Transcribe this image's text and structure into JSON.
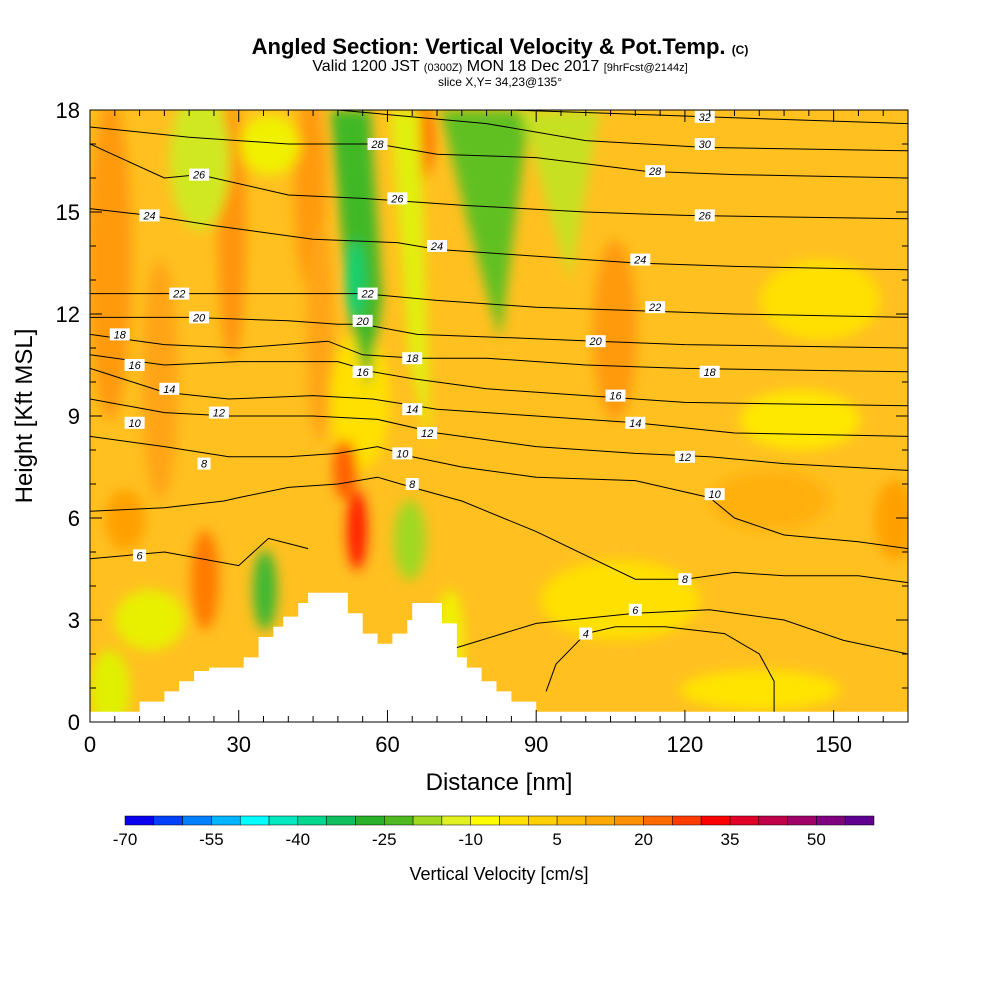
{
  "title": {
    "main": "Angled Section: Vertical Velocity & Pot.Temp.",
    "main_unit": "(C)",
    "valid_prefix": "Valid 1200 JST",
    "valid_utc": "(0300Z)",
    "valid_date": "MON 18 Dec 2017",
    "forecast": "[9hrFcst@2144z]",
    "slice": "slice X,Y= 34,23@135°"
  },
  "chart_data": {
    "type": "heatmap",
    "xlabel": "Distance [nm]",
    "ylabel": "Height [Kft MSL]",
    "xlim": [
      0,
      165
    ],
    "ylim": [
      0,
      18
    ],
    "x_ticks": [
      "0",
      "30",
      "60",
      "90",
      "120",
      "150"
    ],
    "y_ticks": [
      "0",
      "3",
      "6",
      "9",
      "12",
      "15",
      "18"
    ],
    "colorbar": {
      "title": "Vertical Velocity [cm/s]",
      "tick_labels": [
        "-70",
        "-55",
        "-40",
        "-25",
        "-10",
        "5",
        "20",
        "35",
        "50"
      ],
      "colors": [
        "#0a00f0",
        "#0040ff",
        "#0080ff",
        "#00b4ff",
        "#00ffff",
        "#00e8c0",
        "#00d890",
        "#10c060",
        "#28b028",
        "#50b820",
        "#a0d820",
        "#e0f020",
        "#ffff00",
        "#ffe000",
        "#ffd000",
        "#ffbf00",
        "#ffa800",
        "#ff9000",
        "#ff6a00",
        "#ff3c00",
        "#ff0000",
        "#e00028",
        "#c00048",
        "#a00068",
        "#800080",
        "#600090"
      ]
    },
    "terrain_profile_kft": [
      [
        0,
        0.3
      ],
      [
        10,
        0.3
      ],
      [
        10,
        0.6
      ],
      [
        15,
        0.6
      ],
      [
        15,
        0.9
      ],
      [
        18,
        0.9
      ],
      [
        18,
        1.2
      ],
      [
        21,
        1.2
      ],
      [
        21,
        1.5
      ],
      [
        24,
        1.5
      ],
      [
        24,
        1.6
      ],
      [
        31,
        1.6
      ],
      [
        31,
        1.9
      ],
      [
        34,
        1.9
      ],
      [
        34,
        2.5
      ],
      [
        37,
        2.5
      ],
      [
        37,
        2.8
      ],
      [
        39,
        2.8
      ],
      [
        39,
        3.1
      ],
      [
        42,
        3.1
      ],
      [
        42,
        3.5
      ],
      [
        44,
        3.5
      ],
      [
        44,
        3.8
      ],
      [
        52,
        3.8
      ],
      [
        52,
        3.2
      ],
      [
        55,
        3.2
      ],
      [
        55,
        2.6
      ],
      [
        58,
        2.6
      ],
      [
        58,
        2.3
      ],
      [
        61,
        2.3
      ],
      [
        61,
        2.6
      ],
      [
        64,
        2.6
      ],
      [
        64,
        3.0
      ],
      [
        65,
        3.0
      ],
      [
        65,
        3.5
      ],
      [
        71,
        3.5
      ],
      [
        71,
        2.9
      ],
      [
        74,
        2.9
      ],
      [
        74,
        1.9
      ],
      [
        76,
        1.9
      ],
      [
        76,
        1.6
      ],
      [
        79,
        1.6
      ],
      [
        79,
        1.2
      ],
      [
        82,
        1.2
      ],
      [
        82,
        0.9
      ],
      [
        85,
        0.9
      ],
      [
        85,
        0.6
      ],
      [
        90,
        0.6
      ],
      [
        90,
        0.3
      ],
      [
        165,
        0.3
      ]
    ],
    "theta_isentropes": [
      {
        "label": "4",
        "points": [
          [
            92,
            0.9
          ],
          [
            94,
            1.7
          ],
          [
            100,
            2.6
          ],
          [
            106,
            2.8
          ],
          [
            116,
            2.8
          ],
          [
            128,
            2.6
          ],
          [
            135,
            2.0
          ],
          [
            138,
            1.2
          ],
          [
            138,
            0.3
          ]
        ],
        "labels_at": [
          [
            100,
            2.6
          ]
        ]
      },
      {
        "label": "6",
        "points": [
          [
            0,
            4.8
          ],
          [
            15,
            5.0
          ],
          [
            30,
            4.6
          ],
          [
            36,
            5.4
          ],
          [
            44,
            5.1
          ]
        ],
        "labels_at": [
          [
            10,
            4.9
          ]
        ]
      },
      {
        "label": "6",
        "points": [
          [
            72,
            2.1
          ],
          [
            90,
            2.9
          ],
          [
            110,
            3.2
          ],
          [
            125,
            3.3
          ],
          [
            140,
            3.0
          ],
          [
            152,
            2.4
          ],
          [
            165,
            2.0
          ]
        ],
        "labels_at": [
          [
            110,
            3.3
          ]
        ]
      },
      {
        "label": "8",
        "points": [
          [
            0,
            6.2
          ],
          [
            15,
            6.3
          ],
          [
            27,
            6.5
          ],
          [
            30,
            6.6
          ],
          [
            40,
            6.9
          ],
          [
            50,
            7.0
          ],
          [
            58,
            7.2
          ],
          [
            65,
            6.9
          ],
          [
            75,
            6.5
          ],
          [
            90,
            5.6
          ],
          [
            110,
            4.2
          ],
          [
            120,
            4.2
          ],
          [
            130,
            4.4
          ],
          [
            140,
            4.3
          ],
          [
            155,
            4.3
          ],
          [
            165,
            4.1
          ]
        ],
        "labels_at": [
          [
            23,
            7.6
          ],
          [
            65,
            7.0
          ],
          [
            120,
            4.2
          ]
        ]
      },
      {
        "label": "10",
        "points": [
          [
            0,
            8.4
          ],
          [
            15,
            8.1
          ],
          [
            28,
            7.8
          ],
          [
            40,
            7.8
          ],
          [
            50,
            7.9
          ],
          [
            58,
            8.1
          ],
          [
            65,
            7.8
          ],
          [
            75,
            7.5
          ],
          [
            90,
            7.2
          ],
          [
            110,
            7.1
          ],
          [
            125,
            6.6
          ],
          [
            130,
            6.0
          ],
          [
            140,
            5.5
          ],
          [
            155,
            5.3
          ],
          [
            165,
            5.1
          ]
        ],
        "labels_at": [
          [
            9,
            8.8
          ],
          [
            63,
            7.9
          ],
          [
            126,
            6.7
          ]
        ]
      },
      {
        "label": "12",
        "points": [
          [
            0,
            9.5
          ],
          [
            15,
            9.1
          ],
          [
            28,
            9.0
          ],
          [
            45,
            9.0
          ],
          [
            58,
            8.9
          ],
          [
            70,
            8.5
          ],
          [
            90,
            8.1
          ],
          [
            110,
            7.9
          ],
          [
            125,
            7.8
          ],
          [
            140,
            7.6
          ],
          [
            165,
            7.4
          ]
        ],
        "labels_at": [
          [
            26,
            9.1
          ],
          [
            68,
            8.5
          ],
          [
            120,
            7.8
          ]
        ]
      },
      {
        "label": "14",
        "points": [
          [
            0,
            10.4
          ],
          [
            15,
            9.7
          ],
          [
            28,
            9.5
          ],
          [
            45,
            9.6
          ],
          [
            57,
            9.5
          ],
          [
            70,
            9.2
          ],
          [
            90,
            9.0
          ],
          [
            110,
            8.8
          ],
          [
            130,
            8.5
          ],
          [
            165,
            8.4
          ]
        ],
        "labels_at": [
          [
            16,
            9.8
          ],
          [
            65,
            9.2
          ],
          [
            110,
            8.8
          ]
        ]
      },
      {
        "label": "16",
        "points": [
          [
            0,
            10.8
          ],
          [
            15,
            10.5
          ],
          [
            30,
            10.6
          ],
          [
            50,
            10.6
          ],
          [
            57,
            10.3
          ],
          [
            65,
            10.1
          ],
          [
            80,
            9.8
          ],
          [
            100,
            9.6
          ],
          [
            120,
            9.4
          ],
          [
            165,
            9.3
          ]
        ],
        "labels_at": [
          [
            9,
            10.5
          ],
          [
            55,
            10.3
          ],
          [
            106,
            9.6
          ]
        ]
      },
      {
        "label": "18",
        "points": [
          [
            0,
            11.4
          ],
          [
            15,
            11.1
          ],
          [
            30,
            11.0
          ],
          [
            48,
            11.2
          ],
          [
            55,
            10.8
          ],
          [
            66,
            10.7
          ],
          [
            80,
            10.7
          ],
          [
            100,
            10.5
          ],
          [
            120,
            10.4
          ],
          [
            165,
            10.3
          ]
        ],
        "labels_at": [
          [
            6,
            11.4
          ],
          [
            65,
            10.7
          ],
          [
            125,
            10.3
          ]
        ]
      },
      {
        "label": "20",
        "points": [
          [
            0,
            11.9
          ],
          [
            20,
            11.9
          ],
          [
            40,
            11.8
          ],
          [
            50,
            11.7
          ],
          [
            55,
            11.7
          ],
          [
            66,
            11.4
          ],
          [
            85,
            11.3
          ],
          [
            102,
            11.2
          ],
          [
            120,
            11.1
          ],
          [
            165,
            11.0
          ]
        ],
        "labels_at": [
          [
            22,
            11.9
          ],
          [
            55,
            11.8
          ],
          [
            102,
            11.2
          ]
        ]
      },
      {
        "label": "22",
        "points": [
          [
            0,
            12.6
          ],
          [
            20,
            12.6
          ],
          [
            40,
            12.6
          ],
          [
            50,
            12.6
          ],
          [
            55,
            12.6
          ],
          [
            70,
            12.4
          ],
          [
            90,
            12.2
          ],
          [
            110,
            12.1
          ],
          [
            130,
            12.0
          ],
          [
            165,
            11.9
          ]
        ],
        "labels_at": [
          [
            18,
            12.6
          ],
          [
            56,
            12.6
          ],
          [
            114,
            12.2
          ]
        ]
      },
      {
        "label": "24",
        "points": [
          [
            0,
            15.1
          ],
          [
            12,
            14.9
          ],
          [
            25,
            14.6
          ],
          [
            45,
            14.2
          ],
          [
            62,
            14.1
          ],
          [
            70,
            13.9
          ],
          [
            80,
            13.8
          ],
          [
            110,
            13.5
          ],
          [
            130,
            13.4
          ],
          [
            165,
            13.3
          ]
        ],
        "labels_at": [
          [
            12,
            14.9
          ],
          [
            70,
            14.0
          ],
          [
            111,
            13.6
          ]
        ]
      },
      {
        "label": "26",
        "points": [
          [
            0,
            17.0
          ],
          [
            15,
            16.0
          ],
          [
            22,
            16.1
          ],
          [
            40,
            15.5
          ],
          [
            55,
            15.4
          ],
          [
            75,
            15.2
          ],
          [
            100,
            15.0
          ],
          [
            120,
            14.9
          ],
          [
            165,
            14.8
          ]
        ],
        "labels_at": [
          [
            22,
            16.1
          ],
          [
            62,
            15.4
          ],
          [
            124,
            14.9
          ]
        ]
      },
      {
        "label": "28",
        "points": [
          [
            0,
            17.5
          ],
          [
            20,
            17.2
          ],
          [
            40,
            17.0
          ],
          [
            58,
            17.0
          ],
          [
            70,
            16.7
          ],
          [
            90,
            16.6
          ],
          [
            112,
            16.2
          ],
          [
            130,
            16.1
          ],
          [
            165,
            16.0
          ]
        ],
        "labels_at": [
          [
            58,
            17.0
          ],
          [
            114,
            16.2
          ]
        ]
      },
      {
        "label": "30",
        "points": [
          [
            50,
            18.0
          ],
          [
            80,
            17.6
          ],
          [
            100,
            17.1
          ],
          [
            124,
            16.9
          ],
          [
            165,
            16.8
          ]
        ],
        "labels_at": [
          [
            124,
            17.0
          ]
        ]
      },
      {
        "label": "32",
        "points": [
          [
            85,
            18.0
          ],
          [
            105,
            17.9
          ],
          [
            124,
            17.8
          ],
          [
            165,
            17.6
          ]
        ],
        "labels_at": [
          [
            124,
            17.8
          ]
        ]
      }
    ]
  }
}
